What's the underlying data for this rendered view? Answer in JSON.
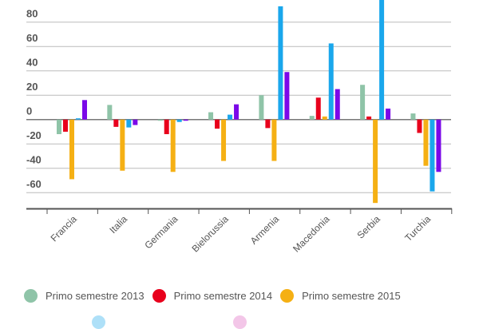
{
  "chart_data": {
    "type": "bar",
    "categories": [
      "Francia",
      "Italia",
      "Germania",
      "Bielorussia",
      "Armenia",
      "Macedonia",
      "Serbia",
      "Turchia"
    ],
    "series": [
      {
        "name": "Primo semestre 2013",
        "color": "#8fc4a8",
        "values": [
          -12,
          12,
          -1,
          6,
          20,
          3,
          28.5,
          5
        ]
      },
      {
        "name": "Primo semestre 2014",
        "color": "#e8001c",
        "values": [
          -10,
          -6,
          -12,
          -7.5,
          -7,
          18,
          2.5,
          -11
        ]
      },
      {
        "name": "Primo semestre 2015",
        "color": "#f5b014",
        "values": [
          -49,
          -42,
          -43,
          -34,
          -34,
          2.5,
          -68.5,
          -38
        ]
      },
      {
        "color": "#1aa7ec",
        "values": [
          1,
          -6.5,
          -2,
          4,
          93,
          62.5,
          105,
          -59
        ]
      },
      {
        "color": "#7b08e8",
        "values": [
          16,
          -4.5,
          0,
          12.5,
          39,
          25,
          9,
          -43
        ]
      }
    ],
    "yticks": [
      "80",
      "60",
      "40",
      "20",
      "0",
      "-20",
      "-40",
      "-60"
    ],
    "ylim": [
      -73,
      98
    ],
    "grid": true,
    "legend_position": "bottom",
    "xlabel": "",
    "ylabel": ""
  }
}
